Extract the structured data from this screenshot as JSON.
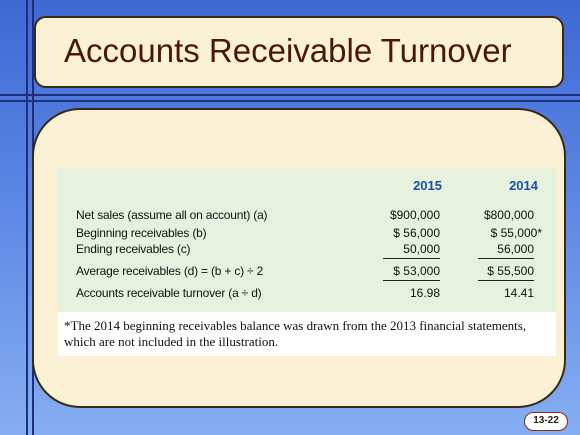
{
  "slide": {
    "title": "Accounts Receivable Turnover",
    "page_number": "13-22"
  },
  "table": {
    "columns": [
      "2015",
      "2014"
    ],
    "rows": [
      {
        "label": "Net sales (assume all on account) (a)",
        "values": [
          "$900,000",
          "$800,000"
        ]
      },
      {
        "label": "Beginning receivables (b)",
        "values": [
          "$ 56,000",
          "$ 55,000*"
        ]
      },
      {
        "label": "Ending receivables (c)",
        "values": [
          "50,000",
          "56,000"
        ]
      },
      {
        "label": "Average receivables (d) = (b + c) ÷ 2",
        "values": [
          "$ 53,000",
          "$ 55,500"
        ]
      },
      {
        "label": "Accounts receivable turnover (a ÷ d)",
        "values": [
          "16.98",
          "14.41"
        ]
      }
    ],
    "footnote": "*The 2014 beginning receivables balance was drawn from the 2013 financial statements, which are not included in the illustration."
  }
}
